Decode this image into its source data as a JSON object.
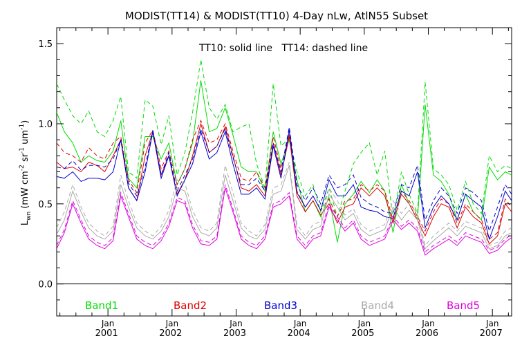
{
  "chart_data": {
    "type": "line",
    "title": "MODIST(TT14) & MODIST(TT10) 4-Day nLw, AtlN55 Subset",
    "subtitle": "TT10: solid line   TT14: dashed line",
    "ylabel": "L_wn (mW cm^-2 sr^-1 um^-1)",
    "ylabel_parts": [
      "L",
      "wn",
      " (mW cm",
      "-2",
      " sr",
      "-1",
      " um",
      "-1",
      ")"
    ],
    "xlabel": "",
    "xlim": [
      2000.2,
      2007.3
    ],
    "ylim": [
      -0.2,
      1.6
    ],
    "yticks": [
      0.0,
      0.5,
      1.0,
      1.5
    ],
    "ytick_labels": [
      "0.0",
      "0.5",
      "1.0",
      "1.5"
    ],
    "xticks": [
      2001.0,
      2002.0,
      2003.0,
      2004.0,
      2005.0,
      2006.0,
      2007.0
    ],
    "xtick_labels": [
      [
        "Jan",
        "2001"
      ],
      [
        "Jan",
        "2002"
      ],
      [
        "Jan",
        "2003"
      ],
      [
        "Jan",
        "2004"
      ],
      [
        "Jan",
        "2005"
      ],
      [
        "Jan",
        "2006"
      ],
      [
        "Jan",
        "2007"
      ]
    ],
    "zero_line": 0.0,
    "legend_placement": "bottom",
    "x": [
      2000.2,
      2000.32,
      2000.45,
      2000.58,
      2000.7,
      2000.83,
      2000.95,
      2001.08,
      2001.2,
      2001.32,
      2001.45,
      2001.58,
      2001.7,
      2001.83,
      2001.95,
      2002.08,
      2002.2,
      2002.32,
      2002.45,
      2002.58,
      2002.7,
      2002.83,
      2002.95,
      2003.08,
      2003.2,
      2003.32,
      2003.45,
      2003.58,
      2003.7,
      2003.83,
      2003.95,
      2004.08,
      2004.2,
      2004.32,
      2004.45,
      2004.58,
      2004.7,
      2004.83,
      2004.95,
      2005.08,
      2005.2,
      2005.32,
      2005.45,
      2005.58,
      2005.7,
      2005.83,
      2005.95,
      2006.08,
      2006.2,
      2006.32,
      2006.45,
      2006.58,
      2006.7,
      2006.83,
      2006.95,
      2007.08,
      2007.2,
      2007.3
    ],
    "series": [
      {
        "name": "Band1",
        "color": "#00dd00",
        "solid": [
          1.07,
          0.95,
          0.88,
          0.76,
          0.8,
          0.77,
          0.76,
          0.83,
          1.02,
          0.66,
          0.6,
          0.92,
          0.92,
          0.78,
          0.88,
          0.62,
          0.72,
          0.88,
          1.27,
          0.95,
          0.97,
          1.1,
          0.93,
          0.73,
          0.7,
          0.7,
          0.58,
          0.95,
          0.75,
          0.9,
          0.65,
          0.45,
          0.52,
          0.42,
          0.54,
          0.26,
          0.5,
          0.56,
          0.64,
          0.57,
          0.65,
          0.58,
          0.32,
          0.62,
          0.5,
          0.4,
          1.12,
          0.68,
          0.64,
          0.56,
          0.4,
          0.56,
          0.45,
          0.4,
          0.73,
          0.65,
          0.7,
          0.68
        ],
        "dashed": [
          1.25,
          1.15,
          1.05,
          1.0,
          1.08,
          0.95,
          0.92,
          1.02,
          1.17,
          0.7,
          0.66,
          1.15,
          1.11,
          0.87,
          1.05,
          0.68,
          0.82,
          1.07,
          1.4,
          1.1,
          1.03,
          1.12,
          0.95,
          0.98,
          1.0,
          0.75,
          0.6,
          1.25,
          0.86,
          0.91,
          0.7,
          0.55,
          0.62,
          0.45,
          0.6,
          0.42,
          0.58,
          0.75,
          0.82,
          0.88,
          0.68,
          0.83,
          0.4,
          0.7,
          0.56,
          0.44,
          1.26,
          0.72,
          0.68,
          0.62,
          0.46,
          0.64,
          0.5,
          0.44,
          0.8,
          0.7,
          0.74,
          0.72
        ]
      },
      {
        "name": "Band2",
        "color": "#dd0000",
        "solid": [
          0.76,
          0.72,
          0.73,
          0.7,
          0.76,
          0.74,
          0.7,
          0.8,
          0.9,
          0.6,
          0.52,
          0.8,
          0.95,
          0.68,
          0.8,
          0.56,
          0.65,
          0.8,
          1.0,
          0.82,
          0.86,
          0.98,
          0.8,
          0.6,
          0.58,
          0.62,
          0.55,
          0.88,
          0.68,
          0.92,
          0.55,
          0.45,
          0.52,
          0.43,
          0.5,
          0.38,
          0.48,
          0.5,
          0.6,
          0.55,
          0.6,
          0.55,
          0.38,
          0.56,
          0.5,
          0.4,
          0.3,
          0.42,
          0.5,
          0.48,
          0.35,
          0.48,
          0.42,
          0.38,
          0.25,
          0.3,
          0.5,
          0.45
        ],
        "dashed": [
          0.88,
          0.82,
          0.8,
          0.76,
          0.85,
          0.8,
          0.78,
          0.88,
          0.92,
          0.65,
          0.57,
          0.88,
          0.96,
          0.72,
          0.83,
          0.62,
          0.72,
          0.9,
          1.02,
          0.88,
          0.9,
          1.0,
          0.83,
          0.66,
          0.64,
          0.7,
          0.6,
          0.92,
          0.72,
          0.94,
          0.58,
          0.48,
          0.55,
          0.46,
          0.53,
          0.42,
          0.52,
          0.53,
          0.62,
          0.58,
          0.62,
          0.58,
          0.4,
          0.58,
          0.52,
          0.42,
          0.33,
          0.45,
          0.53,
          0.5,
          0.38,
          0.5,
          0.45,
          0.4,
          0.28,
          0.32,
          0.53,
          0.48
        ]
      },
      {
        "name": "Band3",
        "color": "#0000cc",
        "solid": [
          0.67,
          0.66,
          0.7,
          0.64,
          0.66,
          0.66,
          0.65,
          0.7,
          0.9,
          0.6,
          0.52,
          0.7,
          0.95,
          0.66,
          0.8,
          0.55,
          0.65,
          0.75,
          0.95,
          0.78,
          0.82,
          0.95,
          0.75,
          0.56,
          0.56,
          0.6,
          0.53,
          0.86,
          0.66,
          0.96,
          0.57,
          0.48,
          0.55,
          0.46,
          0.65,
          0.55,
          0.55,
          0.62,
          0.48,
          0.46,
          0.45,
          0.42,
          0.41,
          0.58,
          0.55,
          0.7,
          0.35,
          0.48,
          0.55,
          0.5,
          0.4,
          0.56,
          0.52,
          0.48,
          0.28,
          0.42,
          0.58,
          0.52
        ],
        "dashed": [
          0.73,
          0.72,
          0.77,
          0.71,
          0.74,
          0.74,
          0.73,
          0.78,
          0.9,
          0.63,
          0.55,
          0.73,
          0.96,
          0.68,
          0.82,
          0.58,
          0.68,
          0.78,
          0.97,
          0.82,
          0.86,
          0.97,
          0.79,
          0.62,
          0.62,
          0.66,
          0.58,
          0.88,
          0.7,
          0.98,
          0.62,
          0.52,
          0.6,
          0.5,
          0.68,
          0.6,
          0.62,
          0.68,
          0.54,
          0.5,
          0.48,
          0.45,
          0.44,
          0.62,
          0.6,
          0.74,
          0.4,
          0.52,
          0.6,
          0.55,
          0.44,
          0.6,
          0.57,
          0.52,
          0.33,
          0.48,
          0.62,
          0.56
        ]
      },
      {
        "name": "Band4",
        "color": "#aaaaaa",
        "solid": [
          0.31,
          0.4,
          0.58,
          0.45,
          0.35,
          0.3,
          0.28,
          0.33,
          0.62,
          0.48,
          0.35,
          0.3,
          0.28,
          0.33,
          0.42,
          0.6,
          0.58,
          0.42,
          0.32,
          0.3,
          0.35,
          0.68,
          0.52,
          0.35,
          0.3,
          0.28,
          0.34,
          0.56,
          0.58,
          0.74,
          0.34,
          0.28,
          0.34,
          0.36,
          0.56,
          0.48,
          0.4,
          0.44,
          0.34,
          0.3,
          0.32,
          0.34,
          0.48,
          0.4,
          0.46,
          0.4,
          0.22,
          0.27,
          0.31,
          0.35,
          0.3,
          0.36,
          0.34,
          0.32,
          0.22,
          0.24,
          0.3,
          0.32
        ],
        "dashed": [
          0.35,
          0.45,
          0.62,
          0.48,
          0.38,
          0.33,
          0.3,
          0.36,
          0.68,
          0.52,
          0.38,
          0.33,
          0.3,
          0.36,
          0.46,
          0.65,
          0.63,
          0.46,
          0.35,
          0.33,
          0.38,
          0.74,
          0.57,
          0.38,
          0.33,
          0.3,
          0.37,
          0.6,
          0.62,
          0.76,
          0.37,
          0.3,
          0.37,
          0.39,
          0.6,
          0.52,
          0.43,
          0.47,
          0.37,
          0.33,
          0.35,
          0.37,
          0.52,
          0.44,
          0.5,
          0.44,
          0.24,
          0.3,
          0.34,
          0.38,
          0.33,
          0.39,
          0.37,
          0.35,
          0.24,
          0.26,
          0.33,
          0.35
        ]
      },
      {
        "name": "Band5",
        "color": "#dd00dd",
        "solid": [
          0.22,
          0.32,
          0.5,
          0.38,
          0.28,
          0.24,
          0.22,
          0.27,
          0.55,
          0.42,
          0.28,
          0.24,
          0.22,
          0.27,
          0.36,
          0.52,
          0.5,
          0.35,
          0.25,
          0.24,
          0.28,
          0.6,
          0.45,
          0.28,
          0.24,
          0.22,
          0.28,
          0.48,
          0.5,
          0.55,
          0.28,
          0.22,
          0.28,
          0.3,
          0.48,
          0.4,
          0.33,
          0.38,
          0.28,
          0.24,
          0.26,
          0.28,
          0.4,
          0.34,
          0.38,
          0.33,
          0.18,
          0.22,
          0.25,
          0.28,
          0.24,
          0.3,
          0.28,
          0.26,
          0.19,
          0.21,
          0.26,
          0.29
        ],
        "dashed": [
          0.24,
          0.34,
          0.52,
          0.4,
          0.3,
          0.26,
          0.24,
          0.29,
          0.57,
          0.44,
          0.3,
          0.26,
          0.24,
          0.29,
          0.38,
          0.54,
          0.52,
          0.37,
          0.27,
          0.26,
          0.3,
          0.62,
          0.47,
          0.3,
          0.26,
          0.24,
          0.3,
          0.5,
          0.52,
          0.57,
          0.3,
          0.24,
          0.3,
          0.32,
          0.5,
          0.42,
          0.35,
          0.4,
          0.3,
          0.26,
          0.28,
          0.3,
          0.42,
          0.36,
          0.4,
          0.35,
          0.2,
          0.24,
          0.27,
          0.3,
          0.26,
          0.32,
          0.3,
          0.28,
          0.21,
          0.23,
          0.28,
          0.31
        ]
      }
    ]
  }
}
